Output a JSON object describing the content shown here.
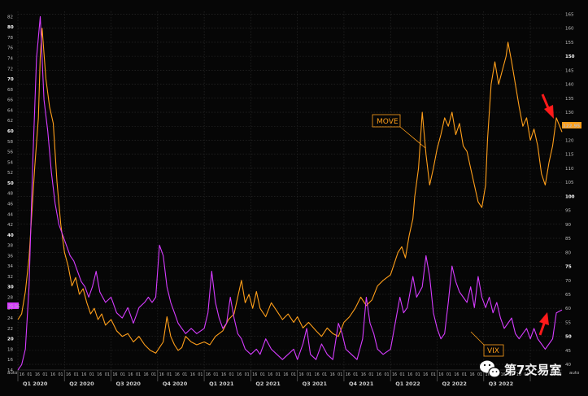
{
  "chart_data": {
    "type": "line",
    "title": "",
    "xlabel": "",
    "x_quarters": [
      "Q1 2020",
      "Q2 2020",
      "Q3 2020",
      "Q4 2020",
      "Q1 2021",
      "Q2 2021",
      "Q3 2021",
      "Q4 2021",
      "Q1 2022",
      "Q2 2022",
      "Q3 2022"
    ],
    "x_range": [
      2020.0,
      2022.92
    ],
    "left_axis": {
      "ticks": [
        14,
        16,
        18,
        20,
        22,
        24,
        26,
        28,
        30,
        32,
        34,
        36,
        38,
        40,
        42,
        44,
        46,
        48,
        50,
        52,
        54,
        56,
        58,
        60,
        62,
        64,
        66,
        68,
        70,
        72,
        74,
        76,
        78,
        80,
        82
      ],
      "bold_ticks": [
        20,
        30,
        40,
        50,
        60,
        70,
        80
      ],
      "range": [
        14,
        83
      ],
      "corner_label": "auto",
      "last_value_label": "25.56"
    },
    "right_axis": {
      "ticks": [
        40,
        45,
        50,
        55,
        60,
        65,
        70,
        75,
        80,
        85,
        90,
        95,
        100,
        105,
        110,
        115,
        120,
        125,
        130,
        135,
        140,
        145,
        150,
        155,
        160,
        165
      ],
      "bold_ticks": [
        50,
        75,
        100,
        125,
        150
      ],
      "range": [
        38,
        166
      ],
      "corner_label": "auto",
      "last_value_label": "122.95"
    },
    "grid": true,
    "series": [
      {
        "name": "MOVE",
        "axis": "right",
        "color": "#ff9f1a",
        "points": [
          [
            2020.0,
            56
          ],
          [
            2020.02,
            58
          ],
          [
            2020.04,
            66
          ],
          [
            2020.06,
            78
          ],
          [
            2020.09,
            110
          ],
          [
            2020.11,
            128
          ],
          [
            2020.12,
            150
          ],
          [
            2020.13,
            160
          ],
          [
            2020.15,
            142
          ],
          [
            2020.17,
            132
          ],
          [
            2020.19,
            126
          ],
          [
            2020.21,
            105
          ],
          [
            2020.23,
            90
          ],
          [
            2020.25,
            80
          ],
          [
            2020.27,
            75
          ],
          [
            2020.29,
            68
          ],
          [
            2020.31,
            71
          ],
          [
            2020.33,
            65
          ],
          [
            2020.35,
            67
          ],
          [
            2020.37,
            62
          ],
          [
            2020.39,
            58
          ],
          [
            2020.41,
            60
          ],
          [
            2020.43,
            56
          ],
          [
            2020.45,
            58
          ],
          [
            2020.47,
            54
          ],
          [
            2020.5,
            56
          ],
          [
            2020.53,
            52
          ],
          [
            2020.56,
            50
          ],
          [
            2020.59,
            51
          ],
          [
            2020.62,
            48
          ],
          [
            2020.65,
            50
          ],
          [
            2020.68,
            47
          ],
          [
            2020.71,
            45
          ],
          [
            2020.74,
            44
          ],
          [
            2020.76,
            46
          ],
          [
            2020.78,
            48
          ],
          [
            2020.8,
            57
          ],
          [
            2020.82,
            50
          ],
          [
            2020.84,
            47
          ],
          [
            2020.86,
            45
          ],
          [
            2020.88,
            46
          ],
          [
            2020.9,
            50
          ],
          [
            2020.93,
            48
          ],
          [
            2020.96,
            47
          ],
          [
            2021.0,
            48
          ],
          [
            2021.03,
            47
          ],
          [
            2021.06,
            50
          ],
          [
            2021.1,
            52
          ],
          [
            2021.13,
            56
          ],
          [
            2021.16,
            58
          ],
          [
            2021.18,
            64
          ],
          [
            2021.2,
            70
          ],
          [
            2021.22,
            62
          ],
          [
            2021.24,
            65
          ],
          [
            2021.26,
            60
          ],
          [
            2021.28,
            66
          ],
          [
            2021.3,
            60
          ],
          [
            2021.33,
            57
          ],
          [
            2021.36,
            62
          ],
          [
            2021.39,
            59
          ],
          [
            2021.42,
            56
          ],
          [
            2021.45,
            58
          ],
          [
            2021.48,
            55
          ],
          [
            2021.5,
            57
          ],
          [
            2021.53,
            53
          ],
          [
            2021.56,
            55
          ],
          [
            2021.6,
            52
          ],
          [
            2021.63,
            50
          ],
          [
            2021.66,
            53
          ],
          [
            2021.69,
            51
          ],
          [
            2021.72,
            50
          ],
          [
            2021.75,
            55
          ],
          [
            2021.78,
            57
          ],
          [
            2021.81,
            60
          ],
          [
            2021.84,
            64
          ],
          [
            2021.87,
            61
          ],
          [
            2021.9,
            63
          ],
          [
            2021.93,
            68
          ],
          [
            2021.96,
            70
          ],
          [
            2022.0,
            72
          ],
          [
            2022.02,
            76
          ],
          [
            2022.04,
            80
          ],
          [
            2022.06,
            82
          ],
          [
            2022.08,
            78
          ],
          [
            2022.1,
            86
          ],
          [
            2022.12,
            92
          ],
          [
            2022.13,
            100
          ],
          [
            2022.15,
            110
          ],
          [
            2022.17,
            130
          ],
          [
            2022.19,
            115
          ],
          [
            2022.21,
            104
          ],
          [
            2022.23,
            110
          ],
          [
            2022.25,
            117
          ],
          [
            2022.27,
            122
          ],
          [
            2022.29,
            128
          ],
          [
            2022.31,
            125
          ],
          [
            2022.33,
            130
          ],
          [
            2022.35,
            122
          ],
          [
            2022.37,
            126
          ],
          [
            2022.39,
            118
          ],
          [
            2022.41,
            116
          ],
          [
            2022.43,
            110
          ],
          [
            2022.45,
            104
          ],
          [
            2022.47,
            98
          ],
          [
            2022.49,
            96
          ],
          [
            2022.51,
            104
          ],
          [
            2022.52,
            120
          ],
          [
            2022.54,
            140
          ],
          [
            2022.56,
            148
          ],
          [
            2022.58,
            140
          ],
          [
            2022.6,
            145
          ],
          [
            2022.62,
            150
          ],
          [
            2022.63,
            155
          ],
          [
            2022.65,
            148
          ],
          [
            2022.67,
            140
          ],
          [
            2022.69,
            132
          ],
          [
            2022.71,
            125
          ],
          [
            2022.73,
            128
          ],
          [
            2022.75,
            120
          ],
          [
            2022.77,
            124
          ],
          [
            2022.79,
            118
          ],
          [
            2022.81,
            108
          ],
          [
            2022.83,
            104
          ],
          [
            2022.85,
            112
          ],
          [
            2022.87,
            118
          ],
          [
            2022.89,
            128
          ],
          [
            2022.92,
            122.95
          ]
        ]
      },
      {
        "name": "VIX",
        "axis": "left",
        "color": "#d63cff",
        "points": [
          [
            2020.0,
            14
          ],
          [
            2020.02,
            15
          ],
          [
            2020.04,
            18
          ],
          [
            2020.06,
            30
          ],
          [
            2020.08,
            54
          ],
          [
            2020.1,
            74
          ],
          [
            2020.12,
            82
          ],
          [
            2020.14,
            66
          ],
          [
            2020.16,
            60
          ],
          [
            2020.18,
            52
          ],
          [
            2020.2,
            46
          ],
          [
            2020.22,
            42
          ],
          [
            2020.24,
            40
          ],
          [
            2020.26,
            38
          ],
          [
            2020.28,
            36
          ],
          [
            2020.3,
            35
          ],
          [
            2020.32,
            33
          ],
          [
            2020.34,
            31
          ],
          [
            2020.36,
            30
          ],
          [
            2020.38,
            28
          ],
          [
            2020.4,
            30
          ],
          [
            2020.42,
            33
          ],
          [
            2020.44,
            29
          ],
          [
            2020.47,
            27
          ],
          [
            2020.5,
            28
          ],
          [
            2020.53,
            25
          ],
          [
            2020.56,
            24
          ],
          [
            2020.59,
            26
          ],
          [
            2020.62,
            23
          ],
          [
            2020.65,
            26
          ],
          [
            2020.68,
            27
          ],
          [
            2020.7,
            28
          ],
          [
            2020.72,
            27
          ],
          [
            2020.74,
            28
          ],
          [
            2020.76,
            38
          ],
          [
            2020.78,
            36
          ],
          [
            2020.8,
            30
          ],
          [
            2020.82,
            27
          ],
          [
            2020.84,
            25
          ],
          [
            2020.86,
            23
          ],
          [
            2020.88,
            22
          ],
          [
            2020.9,
            21
          ],
          [
            2020.93,
            22
          ],
          [
            2020.96,
            21
          ],
          [
            2021.0,
            22
          ],
          [
            2021.02,
            25
          ],
          [
            2021.04,
            33
          ],
          [
            2021.06,
            27
          ],
          [
            2021.08,
            24
          ],
          [
            2021.1,
            22
          ],
          [
            2021.12,
            23
          ],
          [
            2021.14,
            28
          ],
          [
            2021.16,
            24
          ],
          [
            2021.18,
            21
          ],
          [
            2021.2,
            20
          ],
          [
            2021.22,
            18
          ],
          [
            2021.25,
            17
          ],
          [
            2021.28,
            18
          ],
          [
            2021.3,
            17
          ],
          [
            2021.33,
            20
          ],
          [
            2021.36,
            18
          ],
          [
            2021.39,
            17
          ],
          [
            2021.42,
            16
          ],
          [
            2021.45,
            17
          ],
          [
            2021.48,
            18
          ],
          [
            2021.5,
            16
          ],
          [
            2021.53,
            19
          ],
          [
            2021.55,
            22
          ],
          [
            2021.57,
            17
          ],
          [
            2021.6,
            16
          ],
          [
            2021.63,
            19
          ],
          [
            2021.66,
            17
          ],
          [
            2021.69,
            16
          ],
          [
            2021.72,
            23
          ],
          [
            2021.74,
            21
          ],
          [
            2021.76,
            18
          ],
          [
            2021.79,
            17
          ],
          [
            2021.82,
            16
          ],
          [
            2021.85,
            20
          ],
          [
            2021.87,
            28
          ],
          [
            2021.89,
            23
          ],
          [
            2021.91,
            21
          ],
          [
            2021.93,
            18
          ],
          [
            2021.96,
            17
          ],
          [
            2022.0,
            18
          ],
          [
            2022.02,
            22
          ],
          [
            2022.05,
            28
          ],
          [
            2022.07,
            25
          ],
          [
            2022.09,
            26
          ],
          [
            2022.12,
            32
          ],
          [
            2022.14,
            28
          ],
          [
            2022.17,
            30
          ],
          [
            2022.19,
            36
          ],
          [
            2022.21,
            32
          ],
          [
            2022.23,
            25
          ],
          [
            2022.25,
            22
          ],
          [
            2022.27,
            20
          ],
          [
            2022.29,
            21
          ],
          [
            2022.31,
            27
          ],
          [
            2022.33,
            34
          ],
          [
            2022.35,
            31
          ],
          [
            2022.37,
            29
          ],
          [
            2022.39,
            28
          ],
          [
            2022.41,
            27
          ],
          [
            2022.43,
            30
          ],
          [
            2022.45,
            26
          ],
          [
            2022.47,
            32
          ],
          [
            2022.49,
            28
          ],
          [
            2022.51,
            26
          ],
          [
            2022.53,
            28
          ],
          [
            2022.55,
            25
          ],
          [
            2022.57,
            27
          ],
          [
            2022.59,
            24
          ],
          [
            2022.61,
            22
          ],
          [
            2022.63,
            23
          ],
          [
            2022.65,
            24
          ],
          [
            2022.67,
            21
          ],
          [
            2022.69,
            20
          ],
          [
            2022.71,
            21
          ],
          [
            2022.73,
            22
          ],
          [
            2022.75,
            20
          ],
          [
            2022.77,
            22
          ],
          [
            2022.79,
            20
          ],
          [
            2022.81,
            19
          ],
          [
            2022.83,
            18
          ],
          [
            2022.85,
            19
          ],
          [
            2022.87,
            20
          ],
          [
            2022.89,
            25
          ],
          [
            2022.92,
            25.56
          ]
        ]
      }
    ],
    "annotations": [
      {
        "text": "MOVE",
        "color": "#ff9f1a"
      },
      {
        "text": "VIX",
        "color": "#ff9f1a"
      }
    ]
  },
  "watermark": {
    "icon": "wechat-icon",
    "text": "第7交易室"
  },
  "arrows": [
    {
      "name": "down-arrow",
      "color": "#ff1a1a"
    },
    {
      "name": "up-arrow",
      "color": "#ff1a1a"
    }
  ]
}
